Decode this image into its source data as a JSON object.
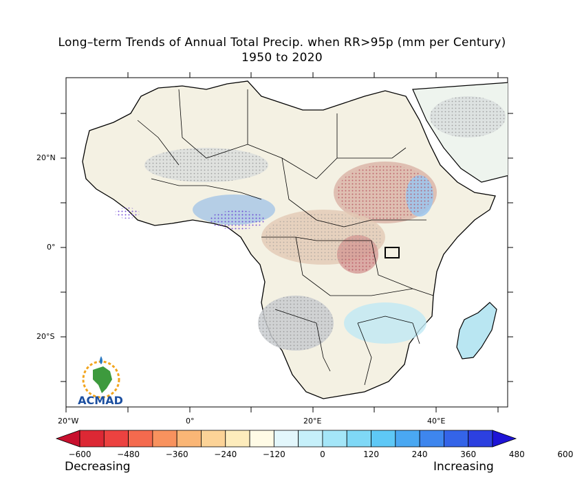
{
  "title": {
    "line1": "Long–term Trends of Annual Total Precip. when RR>95p (mm per Century)",
    "line2": "1950 to 2020"
  },
  "axes": {
    "lat_labels": [
      "20°N",
      "0°",
      "20°S"
    ],
    "lon_labels": [
      "20°W",
      "0°",
      "20°E",
      "40°E"
    ]
  },
  "colorbar": {
    "tick_labels": [
      "−600",
      "−480",
      "−360",
      "−240",
      "−120",
      "0",
      "120",
      "240",
      "360",
      "480",
      "600"
    ],
    "colors": [
      "#c8102e",
      "#dc2834",
      "#ec4240",
      "#f46a4e",
      "#f8925e",
      "#fab676",
      "#fcd397",
      "#fdecbc",
      "#fffbe6",
      "#e3f7fc",
      "#c6f0fa",
      "#a4e6f8",
      "#7fd8f6",
      "#5ec8f6",
      "#4aa8f2",
      "#3e86ee",
      "#3464e8",
      "#2c40e0",
      "#1e14d6"
    ],
    "left_caption": "Decreasing",
    "right_caption": "Increasing"
  },
  "logo": {
    "text": "ACMAD",
    "icon": "africa-sun-logo-icon"
  }
}
